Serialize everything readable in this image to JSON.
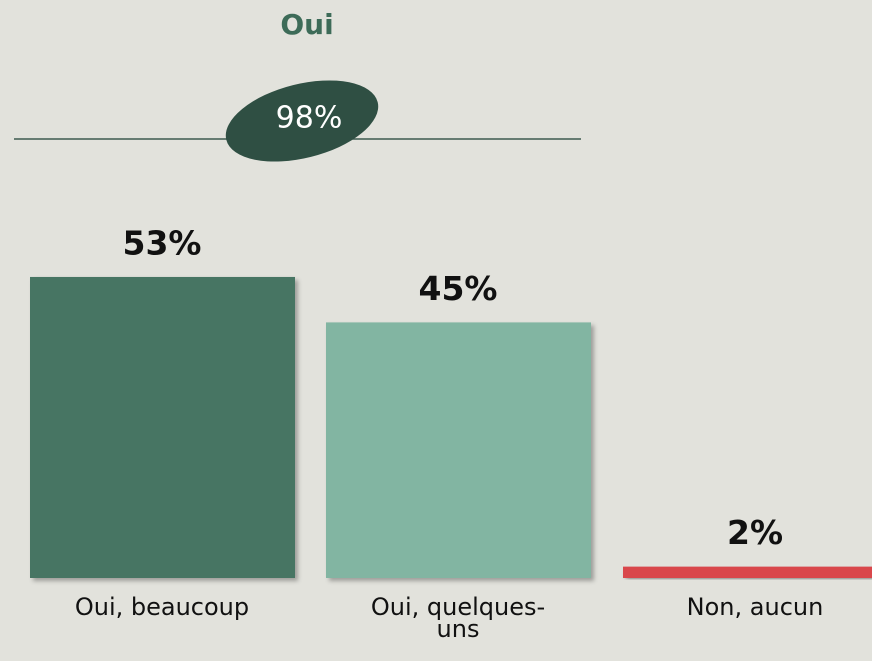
{
  "chart_data": {
    "type": "bar",
    "annotations": [
      "Oui",
      "98%"
    ],
    "categories": [
      "Oui, beaucoup",
      "Oui, quelques-uns",
      "Non, aucun"
    ],
    "values": [
      53,
      45,
      2
    ],
    "value_labels": [
      "53%",
      "45%",
      "2%"
    ],
    "colors": [
      "#477563",
      "#82b5a2",
      "#d9474c"
    ]
  }
}
